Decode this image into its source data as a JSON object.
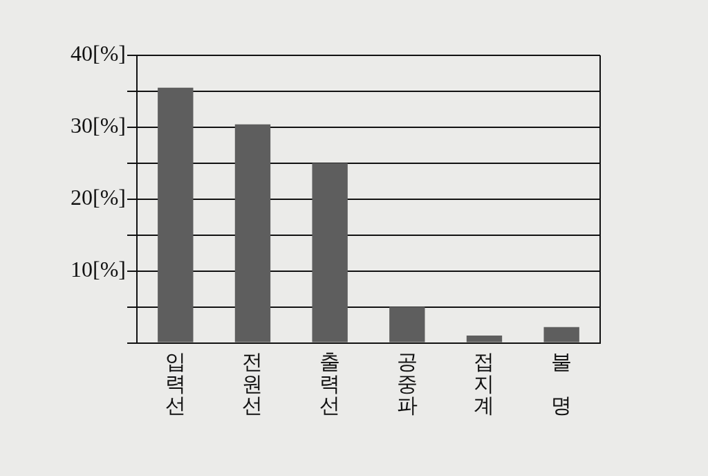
{
  "chart_data": {
    "type": "bar",
    "categories": [
      "입력선",
      "전원선",
      "출력선",
      "공중파",
      "접지계",
      "불 명"
    ],
    "values": [
      35.5,
      30.4,
      25,
      5,
      1,
      2.2
    ],
    "color": "#5e5e5e",
    "ylim": [
      0,
      40
    ],
    "yticks": [
      {
        "value": 0,
        "label": null
      },
      {
        "value": 5,
        "label": null
      },
      {
        "value": 10,
        "label": "10[%]"
      },
      {
        "value": 15,
        "label": null
      },
      {
        "value": 20,
        "label": "20[%]"
      },
      {
        "value": 25,
        "label": null
      },
      {
        "value": 30,
        "label": "30[%]"
      },
      {
        "value": 35,
        "label": null
      },
      {
        "value": 40,
        "label": "40[%]"
      }
    ],
    "grid": "y"
  }
}
